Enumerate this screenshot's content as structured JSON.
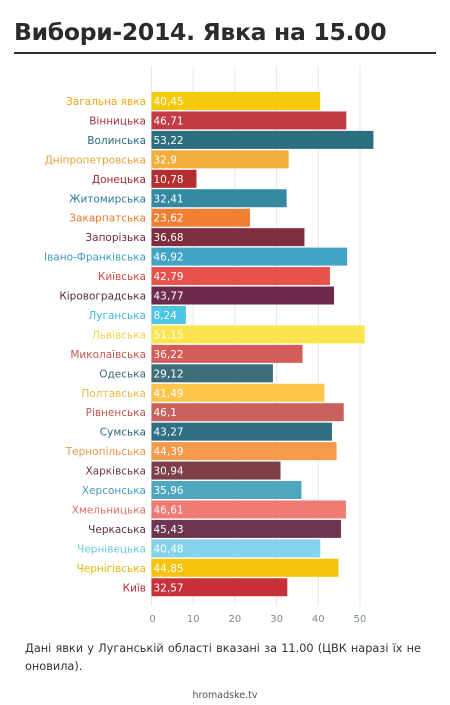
{
  "header": {
    "title": "Вибори-2014. Явка на 15.00"
  },
  "chart_data": {
    "type": "bar",
    "orientation": "horizontal",
    "title": "Вибори-2014. Явка на 15.00",
    "xlabel": "",
    "ylabel": "",
    "xlim": [
      0,
      55
    ],
    "x_ticks": [
      0,
      10,
      20,
      30,
      40,
      50
    ],
    "grid": true,
    "bar_labels": true,
    "categories": [
      "Загальна явка",
      "Вінницька",
      "Волинська",
      "Дніпропетровська",
      "Донецька",
      "Житомирська",
      "Закарпатська",
      "Запорізька",
      "Івано-Франківська",
      "Київська",
      "Кіровоградська",
      "Луганська",
      "Львівська",
      "Миколаївська",
      "Одеська",
      "Полтавська",
      "Рівненська",
      "Сумська",
      "Тернопільська",
      "Харківська",
      "Херсонська",
      "Хмельницька",
      "Черкаська",
      "Чернівецька",
      "Чернігівська",
      "Київ"
    ],
    "values": [
      40.45,
      46.71,
      53.22,
      32.9,
      10.78,
      32.41,
      23.62,
      36.68,
      46.92,
      42.79,
      43.77,
      8.24,
      51.15,
      36.22,
      29.12,
      41.49,
      46.1,
      43.27,
      44.39,
      30.94,
      35.96,
      46.61,
      45.43,
      40.48,
      44.85,
      32.57
    ],
    "value_labels": [
      "40,45",
      "46,71",
      "53,22",
      "32,9",
      "10,78",
      "32,41",
      "23,62",
      "36,68",
      "46,92",
      "42,79",
      "43,77",
      "8,24",
      "51,15",
      "36,22",
      "29,12",
      "41,49",
      "46,1",
      "43,27",
      "44,39",
      "30,94",
      "35,96",
      "46,61",
      "45,43",
      "40,48",
      "44,85",
      "32,57"
    ],
    "colors": [
      "#f8c90b",
      "#c33c45",
      "#2b6f80",
      "#f0ae3a",
      "#b52e2f",
      "#3388a2",
      "#f07f31",
      "#7e2e3e",
      "#43a3c6",
      "#e7524c",
      "#6c2b4c",
      "#4cc5e3",
      "#fbe54e",
      "#d45d59",
      "#3e6e7b",
      "#fdc54c",
      "#c9605c",
      "#2f6f84",
      "#f59a4c",
      "#7f3f47",
      "#4fa6bf",
      "#f07a74",
      "#6e3551",
      "#84d2eb",
      "#f7c20d",
      "#c8303a"
    ],
    "category_label_colors": [
      "#e8a910",
      "#a8323a",
      "#2a6b80",
      "#e5a43a",
      "#a02a2e",
      "#2a7f98",
      "#e27a2e",
      "#6c2a38",
      "#3f9ec2",
      "#d04a45",
      "#5a2a46",
      "#3fb9da",
      "#f0d34a",
      "#c2544f",
      "#3d6670",
      "#eeb648",
      "#b55752",
      "#2a6a80",
      "#e89448",
      "#6a383f",
      "#469dbb",
      "#e3716c",
      "#5d2f47",
      "#6cc6e2",
      "#e6b40c",
      "#b52c34"
    ]
  },
  "footer": {
    "note": "Дані явки у Луганській області вказані за 11.00 (ЦВК наразі їх не оновила).",
    "source": "hromadske.tv"
  }
}
